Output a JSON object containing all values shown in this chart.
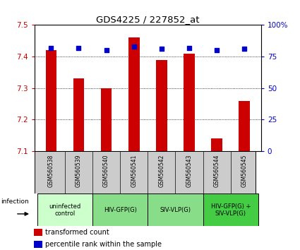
{
  "title": "GDS4225 / 227852_at",
  "samples": [
    "GSM560538",
    "GSM560539",
    "GSM560540",
    "GSM560541",
    "GSM560542",
    "GSM560543",
    "GSM560544",
    "GSM560545"
  ],
  "transformed_counts": [
    7.42,
    7.33,
    7.3,
    7.46,
    7.39,
    7.41,
    7.14,
    7.26
  ],
  "percentile_ranks": [
    82,
    82,
    80,
    83,
    81,
    82,
    80,
    81
  ],
  "ylim_left": [
    7.1,
    7.5
  ],
  "ylim_right": [
    0,
    100
  ],
  "yticks_left": [
    7.1,
    7.2,
    7.3,
    7.4,
    7.5
  ],
  "yticks_right": [
    0,
    25,
    50,
    75,
    100
  ],
  "ytick_right_labels": [
    "0",
    "25",
    "50",
    "75",
    "100%"
  ],
  "bar_color": "#cc0000",
  "dot_color": "#0000cc",
  "bar_width": 0.4,
  "groups": [
    {
      "label": "uninfected\ncontrol",
      "start": 0,
      "end": 2,
      "color": "#ccffcc"
    },
    {
      "label": "HIV-GFP(G)",
      "start": 2,
      "end": 4,
      "color": "#88dd88"
    },
    {
      "label": "SIV-VLP(G)",
      "start": 4,
      "end": 6,
      "color": "#88dd88"
    },
    {
      "label": "HIV-GFP(G) +\nSIV-VLP(G)",
      "start": 6,
      "end": 8,
      "color": "#44cc44"
    }
  ],
  "legend_bar_label": "transformed count",
  "legend_dot_label": "percentile rank within the sample",
  "infection_label": "infection",
  "sample_label_bg": "#cccccc",
  "sample_label_border": "#888888"
}
